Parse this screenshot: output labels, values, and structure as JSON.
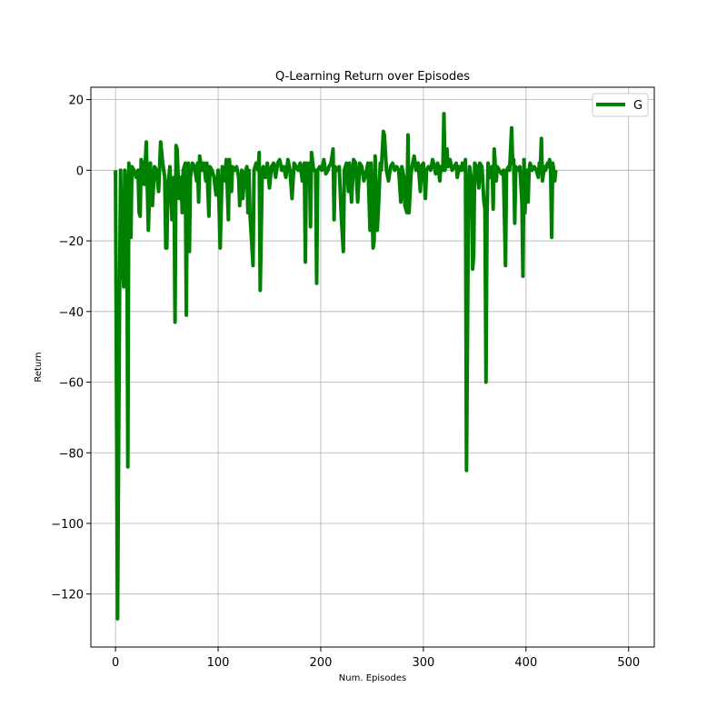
{
  "chart_data": {
    "type": "line",
    "title": "Q-Learning Return over Episodes",
    "xlabel": "Num. Episodes",
    "ylabel": "Return",
    "xlim": [
      -24,
      525
    ],
    "ylim": [
      -135,
      23.5
    ],
    "xticks": [
      0,
      100,
      200,
      300,
      400,
      500
    ],
    "yticks": [
      20,
      0,
      -20,
      -40,
      -60,
      -80,
      -100,
      -120
    ],
    "grid": true,
    "legend": "top-right",
    "series": [
      {
        "name": "G",
        "color": "#008000",
        "points": [
          [
            0,
            0
          ],
          [
            2,
            -127
          ],
          [
            4,
            -33
          ],
          [
            5,
            0
          ],
          [
            6,
            -20
          ],
          [
            8,
            -33
          ],
          [
            9,
            0
          ],
          [
            11,
            -5
          ],
          [
            12,
            -84
          ],
          [
            13,
            2
          ],
          [
            15,
            -19
          ],
          [
            16,
            1
          ],
          [
            18,
            0
          ],
          [
            20,
            -2
          ],
          [
            22,
            0
          ],
          [
            23,
            -12
          ],
          [
            24,
            -13
          ],
          [
            25,
            3
          ],
          [
            27,
            1
          ],
          [
            28,
            -4
          ],
          [
            30,
            8
          ],
          [
            32,
            -17
          ],
          [
            34,
            2
          ],
          [
            36,
            -10
          ],
          [
            38,
            1
          ],
          [
            40,
            0
          ],
          [
            42,
            -6
          ],
          [
            44,
            8
          ],
          [
            46,
            2
          ],
          [
            48,
            -2
          ],
          [
            49,
            -22
          ],
          [
            50,
            -22
          ],
          [
            51,
            -5
          ],
          [
            53,
            1
          ],
          [
            55,
            -14
          ],
          [
            56,
            -14
          ],
          [
            57,
            -2
          ],
          [
            58,
            -43
          ],
          [
            59,
            7
          ],
          [
            60,
            6
          ],
          [
            62,
            -8
          ],
          [
            64,
            -2
          ],
          [
            65,
            -12
          ],
          [
            66,
            0
          ],
          [
            68,
            2
          ],
          [
            69,
            -41
          ],
          [
            70,
            0
          ],
          [
            71,
            2
          ],
          [
            72,
            -23
          ],
          [
            73,
            -2
          ],
          [
            75,
            2
          ],
          [
            77,
            1
          ],
          [
            79,
            -3
          ],
          [
            80,
            2
          ],
          [
            81,
            -9
          ],
          [
            82,
            4
          ],
          [
            84,
            0
          ],
          [
            86,
            2
          ],
          [
            88,
            -3
          ],
          [
            89,
            2
          ],
          [
            91,
            -13
          ],
          [
            92,
            1
          ],
          [
            94,
            0
          ],
          [
            96,
            -2
          ],
          [
            98,
            -7
          ],
          [
            100,
            0
          ],
          [
            102,
            -22
          ],
          [
            104,
            1
          ],
          [
            106,
            -3
          ],
          [
            108,
            3
          ],
          [
            110,
            -14
          ],
          [
            111,
            3
          ],
          [
            113,
            -6
          ],
          [
            114,
            1
          ],
          [
            116,
            0
          ],
          [
            118,
            1
          ],
          [
            120,
            -2
          ],
          [
            121,
            -10
          ],
          [
            123,
            0
          ],
          [
            124,
            -8
          ],
          [
            126,
            -1
          ],
          [
            128,
            1
          ],
          [
            129,
            -12
          ],
          [
            130,
            0
          ],
          [
            131,
            -12
          ],
          [
            132,
            -17
          ],
          [
            134,
            -27
          ],
          [
            135,
            0
          ],
          [
            137,
            2
          ],
          [
            139,
            0
          ],
          [
            140,
            5
          ],
          [
            141,
            -34
          ],
          [
            143,
            0
          ],
          [
            144,
            1
          ],
          [
            146,
            -2
          ],
          [
            148,
            2
          ],
          [
            150,
            -5
          ],
          [
            152,
            1
          ],
          [
            154,
            2
          ],
          [
            156,
            -2
          ],
          [
            158,
            2
          ],
          [
            160,
            3
          ],
          [
            162,
            0
          ],
          [
            164,
            1
          ],
          [
            166,
            -2
          ],
          [
            168,
            3
          ],
          [
            170,
            0
          ],
          [
            172,
            -8
          ],
          [
            174,
            2
          ],
          [
            176,
            1
          ],
          [
            178,
            0
          ],
          [
            180,
            2
          ],
          [
            182,
            -3
          ],
          [
            184,
            2
          ],
          [
            185,
            -26
          ],
          [
            186,
            2
          ],
          [
            188,
            0
          ],
          [
            189,
            2
          ],
          [
            190,
            -16
          ],
          [
            191,
            5
          ],
          [
            193,
            0
          ],
          [
            195,
            0
          ],
          [
            196,
            -32
          ],
          [
            197,
            0
          ],
          [
            199,
            1
          ],
          [
            201,
            0
          ],
          [
            203,
            3
          ],
          [
            205,
            -1
          ],
          [
            207,
            0
          ],
          [
            208,
            1
          ],
          [
            210,
            2
          ],
          [
            212,
            6
          ],
          [
            213,
            -14
          ],
          [
            214,
            1
          ],
          [
            216,
            0
          ],
          [
            218,
            1
          ],
          [
            220,
            -13
          ],
          [
            222,
            -23
          ],
          [
            223,
            0
          ],
          [
            225,
            2
          ],
          [
            227,
            -6
          ],
          [
            228,
            2
          ],
          [
            230,
            -9
          ],
          [
            232,
            3
          ],
          [
            234,
            2
          ],
          [
            236,
            -9
          ],
          [
            238,
            2
          ],
          [
            240,
            1
          ],
          [
            242,
            -3
          ],
          [
            244,
            -1
          ],
          [
            246,
            2
          ],
          [
            248,
            -17
          ],
          [
            249,
            2
          ],
          [
            251,
            -22
          ],
          [
            252,
            -20
          ],
          [
            253,
            4
          ],
          [
            255,
            -17
          ],
          [
            256,
            -12
          ],
          [
            258,
            2
          ],
          [
            259,
            0
          ],
          [
            261,
            11
          ],
          [
            262,
            10
          ],
          [
            264,
            0
          ],
          [
            266,
            -3
          ],
          [
            268,
            1
          ],
          [
            270,
            2
          ],
          [
            272,
            0
          ],
          [
            274,
            1
          ],
          [
            276,
            0
          ],
          [
            278,
            -9
          ],
          [
            279,
            1
          ],
          [
            281,
            -2
          ],
          [
            282,
            -10
          ],
          [
            284,
            -12
          ],
          [
            285,
            10
          ],
          [
            286,
            -12
          ],
          [
            288,
            -1
          ],
          [
            289,
            1
          ],
          [
            291,
            4
          ],
          [
            293,
            0
          ],
          [
            295,
            2
          ],
          [
            297,
            -6
          ],
          [
            298,
            1
          ],
          [
            300,
            2
          ],
          [
            302,
            -8
          ],
          [
            303,
            0
          ],
          [
            305,
            1
          ],
          [
            307,
            0
          ],
          [
            309,
            3
          ],
          [
            310,
            2
          ],
          [
            312,
            -1
          ],
          [
            314,
            2
          ],
          [
            316,
            -3
          ],
          [
            317,
            1
          ],
          [
            319,
            0
          ],
          [
            320,
            16
          ],
          [
            321,
            0
          ],
          [
            323,
            6
          ],
          [
            324,
            1
          ],
          [
            326,
            3
          ],
          [
            328,
            0
          ],
          [
            330,
            1
          ],
          [
            332,
            2
          ],
          [
            333,
            -2
          ],
          [
            335,
            1
          ],
          [
            337,
            0
          ],
          [
            338,
            2
          ],
          [
            340,
            0
          ],
          [
            341,
            3
          ],
          [
            342,
            -85
          ],
          [
            344,
            -5
          ],
          [
            345,
            1
          ],
          [
            347,
            -3
          ],
          [
            348,
            -28
          ],
          [
            349,
            -24
          ],
          [
            350,
            2
          ],
          [
            352,
            1
          ],
          [
            354,
            -5
          ],
          [
            355,
            2
          ],
          [
            357,
            1
          ],
          [
            359,
            -9
          ],
          [
            360,
            -11
          ],
          [
            361,
            -60
          ],
          [
            362,
            -13
          ],
          [
            363,
            2
          ],
          [
            365,
            -2
          ],
          [
            367,
            1
          ],
          [
            368,
            -11
          ],
          [
            369,
            6
          ],
          [
            371,
            -3
          ],
          [
            372,
            1
          ],
          [
            374,
            0
          ],
          [
            376,
            -1
          ],
          [
            378,
            0
          ],
          [
            380,
            -27
          ],
          [
            381,
            0
          ],
          [
            383,
            1
          ],
          [
            384,
            0
          ],
          [
            386,
            12
          ],
          [
            387,
            2
          ],
          [
            388,
            3
          ],
          [
            389,
            -15
          ],
          [
            390,
            1
          ],
          [
            392,
            0
          ],
          [
            394,
            1
          ],
          [
            396,
            -9
          ],
          [
            397,
            -30
          ],
          [
            398,
            3
          ],
          [
            399,
            -12
          ],
          [
            400,
            0
          ],
          [
            402,
            -9
          ],
          [
            403,
            0
          ],
          [
            404,
            2
          ],
          [
            406,
            0
          ],
          [
            408,
            1
          ],
          [
            410,
            0
          ],
          [
            412,
            -2
          ],
          [
            413,
            2
          ],
          [
            414,
            1
          ],
          [
            415,
            9
          ],
          [
            416,
            -3
          ],
          [
            418,
            1
          ],
          [
            419,
            0
          ],
          [
            421,
            2
          ],
          [
            422,
            1
          ],
          [
            423,
            3
          ],
          [
            424,
            0
          ],
          [
            425,
            -19
          ],
          [
            426,
            2
          ],
          [
            427,
            0
          ],
          [
            428,
            -3
          ],
          [
            429,
            0
          ]
        ]
      }
    ]
  }
}
